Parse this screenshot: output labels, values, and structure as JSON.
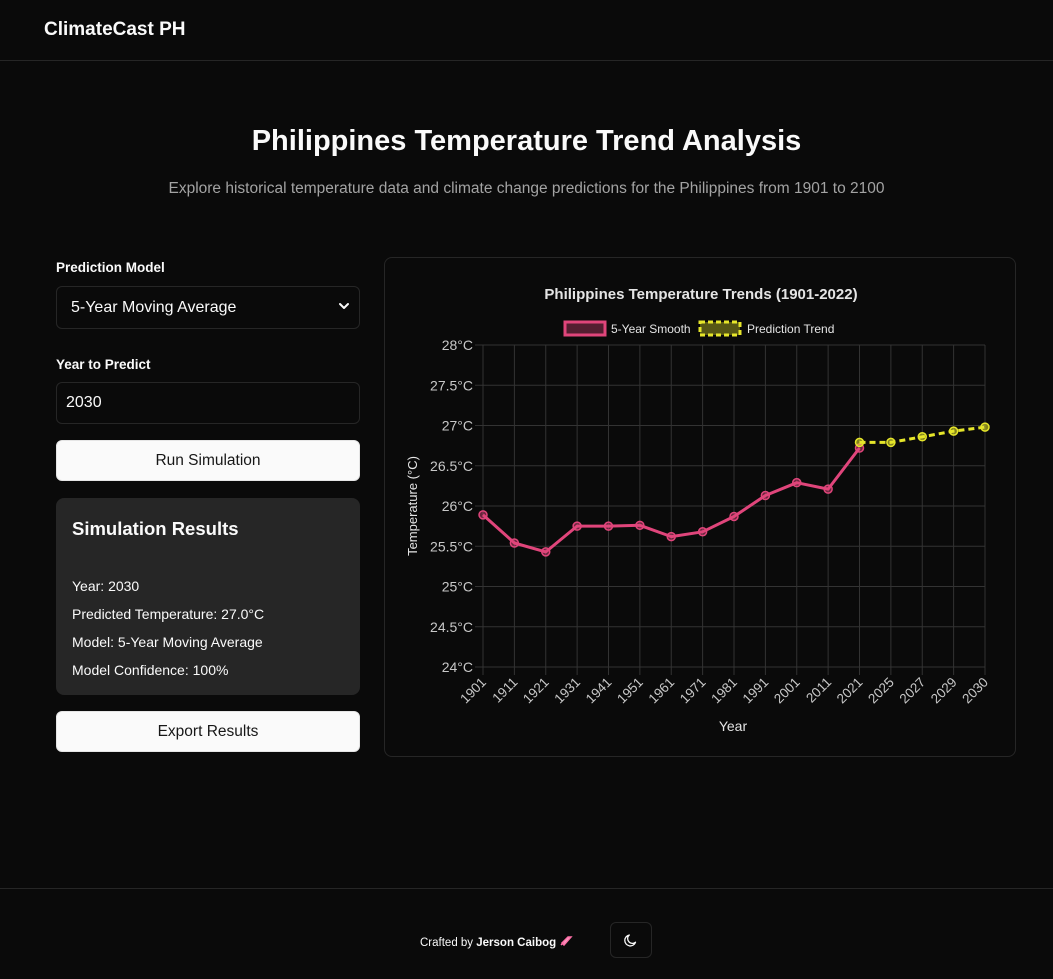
{
  "header": {
    "brand": "ClimateCast PH"
  },
  "hero": {
    "title": "Philippines Temperature Trend Analysis",
    "subtitle": "Explore historical temperature data and climate change predictions for the Philippines from 1901 to 2100"
  },
  "controls": {
    "model_label": "Prediction Model",
    "model_value": "5-Year Moving Average",
    "year_label": "Year to Predict",
    "year_value": "2030",
    "run_button": "Run Simulation",
    "export_button": "Export Results"
  },
  "results": {
    "title": "Simulation Results",
    "year": "Year: 2030",
    "predicted": "Predicted Temperature: 27.0°C",
    "model": "Model: 5-Year Moving Average",
    "confidence": "Model Confidence: 100%"
  },
  "footer": {
    "credit_prefix": "Crafted by",
    "author": "Jerson Caibog",
    "rocket_icon": "rocket-icon",
    "theme_icon": "moon-icon"
  },
  "chart_data": {
    "type": "line",
    "title": "Philippines Temperature Trends (1901-2022)",
    "xlabel": "Year",
    "ylabel": "Temperature (°C)",
    "categories": [
      "1901",
      "1911",
      "1921",
      "1931",
      "1941",
      "1951",
      "1961",
      "1971",
      "1981",
      "1991",
      "2001",
      "2011",
      "2021",
      "2025",
      "2027",
      "2029",
      "2030"
    ],
    "ylim": [
      24,
      28
    ],
    "yticks": [
      "24°C",
      "24.5°C",
      "25°C",
      "25.5°C",
      "26°C",
      "26.5°C",
      "27°C",
      "27.5°C",
      "28°C"
    ],
    "grid": true,
    "legend": "top",
    "series": [
      {
        "name": "5-Year Smooth",
        "color": "#e0457b",
        "style": "solid",
        "values": [
          25.89,
          25.54,
          25.43,
          25.75,
          25.75,
          25.76,
          25.62,
          25.68,
          25.87,
          26.13,
          26.29,
          26.21,
          26.72,
          null,
          null,
          null,
          null
        ]
      },
      {
        "name": "Prediction Trend",
        "color": "#e5e52a",
        "style": "dashed",
        "values": [
          null,
          null,
          null,
          null,
          null,
          null,
          null,
          null,
          null,
          null,
          null,
          null,
          26.79,
          26.79,
          26.86,
          26.93,
          26.98
        ]
      }
    ]
  }
}
